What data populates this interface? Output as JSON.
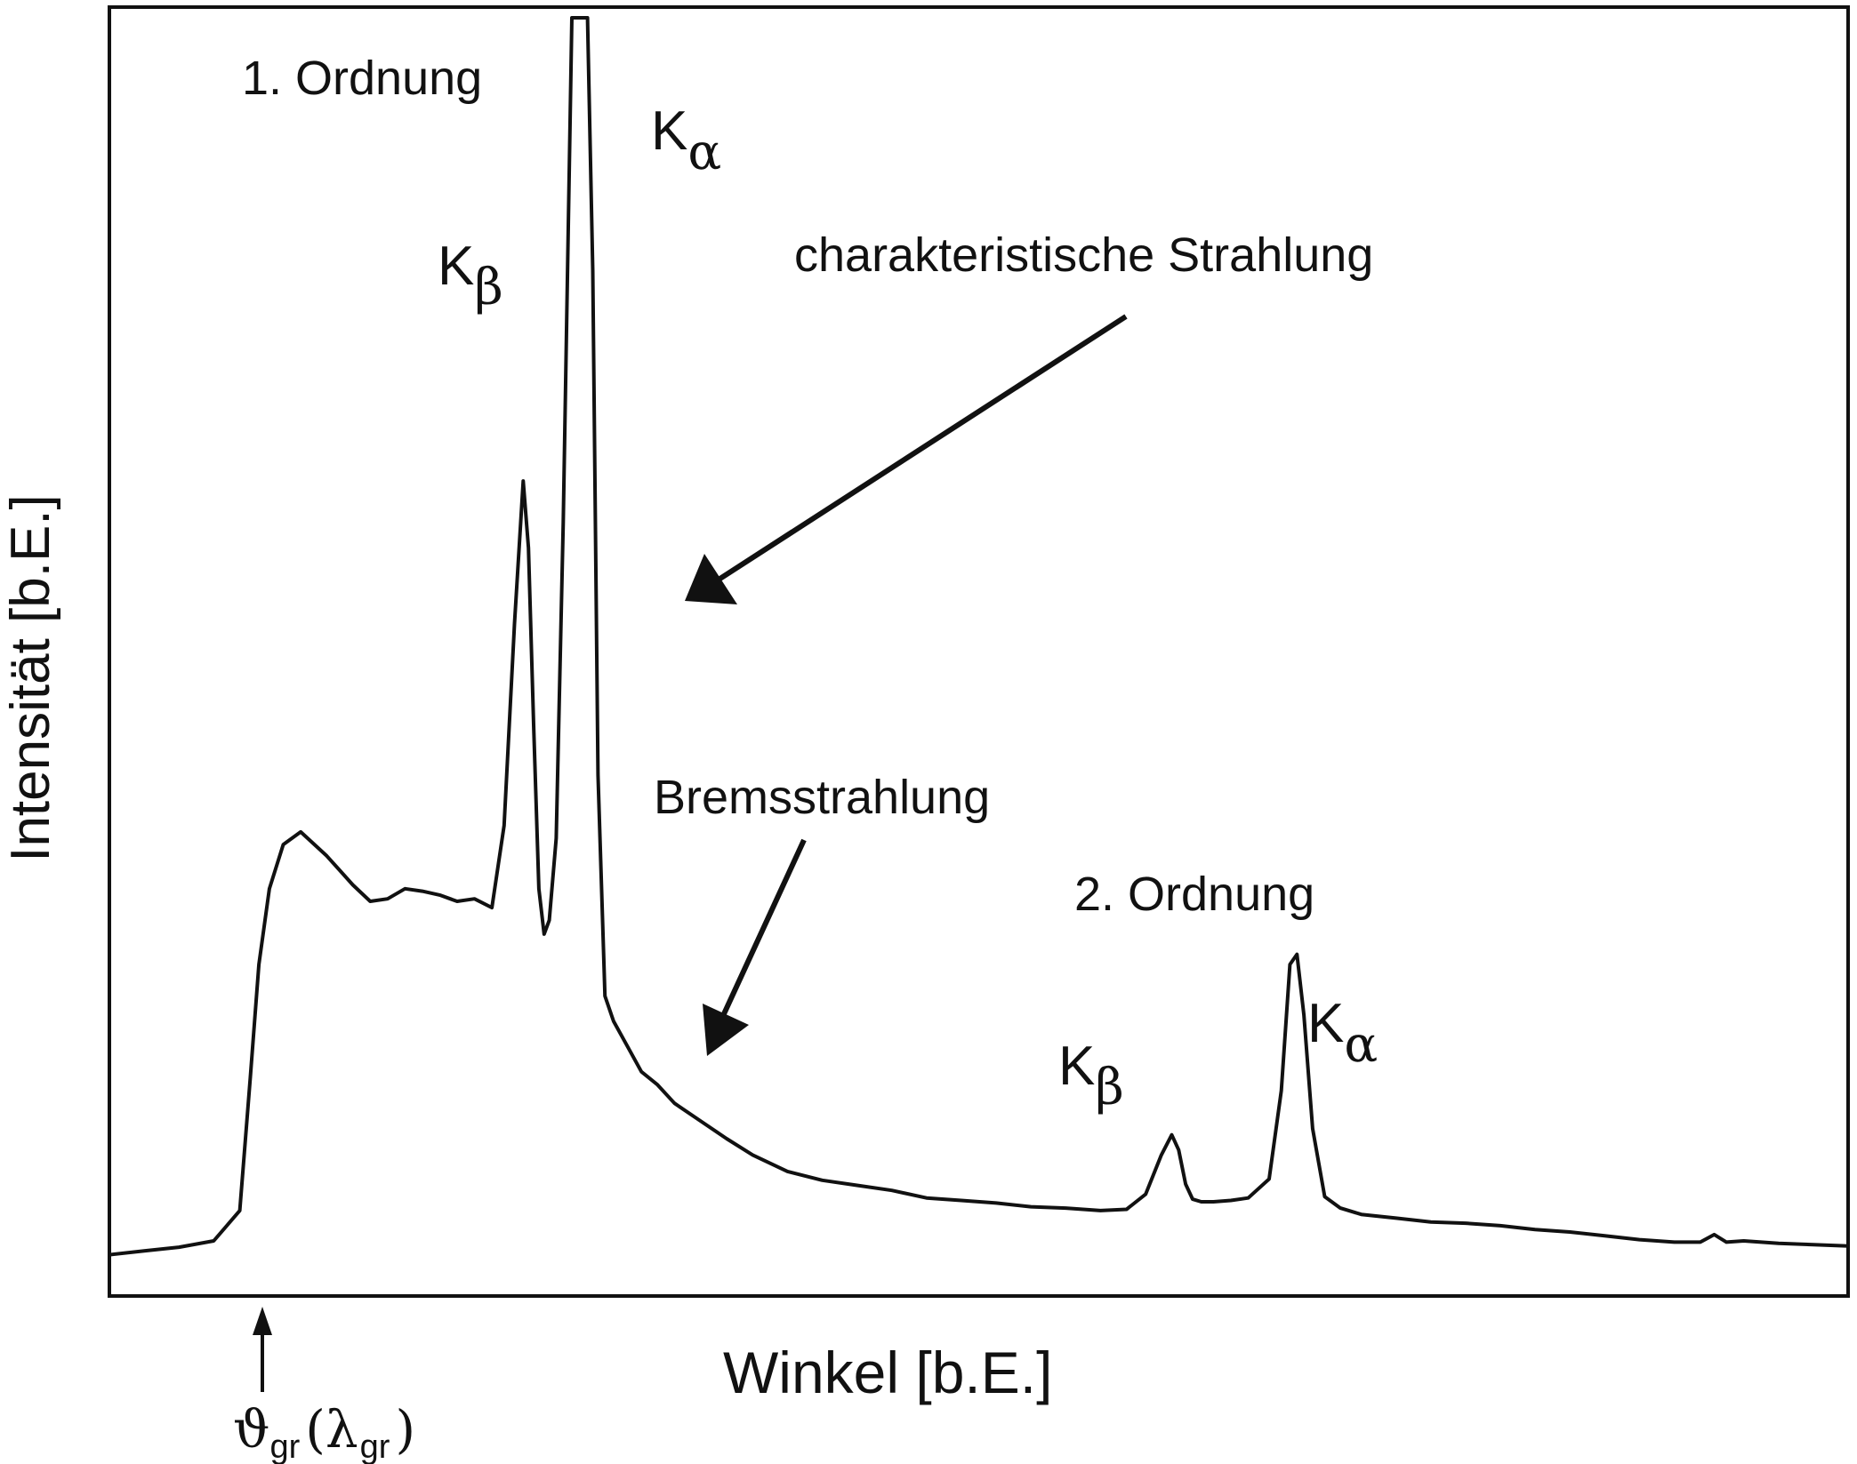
{
  "chart_data": {
    "type": "line",
    "title": "",
    "xlabel": "Winkel [b.E.]",
    "ylabel": "Intensität [b.E.]",
    "xlim": [
      0,
      100
    ],
    "ylim": [
      0,
      100
    ],
    "ticks": "none",
    "grid": false,
    "legend": "none",
    "series": [
      {
        "x": [
          0,
          2,
          4,
          6,
          7.5,
          8.1,
          8.6,
          9.2,
          10,
          11,
          12.5,
          14,
          15,
          16,
          17,
          18,
          19,
          20,
          21,
          22,
          22.7,
          23.3,
          23.8,
          24.1,
          24.4,
          24.7,
          25,
          25.3,
          25.7,
          26.1,
          26.6,
          27.1,
          27.5,
          27.8,
          28.1,
          28.5,
          29,
          29.8,
          30.6,
          31.5,
          32.5,
          34,
          35.5,
          37,
          39,
          41,
          43,
          45,
          47,
          49,
          51,
          53,
          55,
          57,
          58.5,
          59.6,
          60.5,
          61.1,
          61.5,
          61.9,
          62.3,
          62.8,
          63.5,
          64.5,
          65.5,
          66.7,
          67.4,
          67.9,
          68.3,
          68.7,
          69.2,
          69.9,
          70.8,
          72,
          74,
          76,
          78,
          80,
          82,
          84,
          86,
          88,
          90,
          91.5,
          92.3,
          93,
          94,
          96,
          98,
          100
        ],
        "y": [
          2,
          2.3,
          2.6,
          3.1,
          5.5,
          16,
          25,
          31,
          34.5,
          35.5,
          33.6,
          31.3,
          30,
          30.2,
          31,
          30.8,
          30.5,
          30,
          30.2,
          29.5,
          36,
          52,
          63.3,
          58,
          44,
          31,
          27.4,
          28.5,
          35,
          60,
          100,
          100,
          100,
          80,
          40,
          22.5,
          20.5,
          18.5,
          16.5,
          15.5,
          14,
          12.6,
          11.2,
          9.9,
          8.6,
          7.9,
          7.5,
          7.1,
          6.5,
          6.3,
          6.1,
          5.8,
          5.7,
          5.5,
          5.6,
          6.8,
          9.9,
          11.5,
          10.3,
          7.6,
          6.4,
          6.2,
          6.2,
          6.3,
          6.5,
          8,
          15,
          25,
          25.8,
          21,
          12,
          6.6,
          5.7,
          5.2,
          4.9,
          4.6,
          4.5,
          4.3,
          4,
          3.8,
          3.5,
          3.2,
          3,
          3,
          3.6,
          3,
          3.1,
          2.9,
          2.8,
          2.7
        ]
      }
    ],
    "annotations": {
      "first_order": "1. Ordnung",
      "second_order": "2. Ordnung",
      "k_letter": "K",
      "alpha": "α",
      "beta": "β",
      "characteristic": "charakteristische Strahlung",
      "bremsstrahlung": "Bremsstrahlung",
      "theta": "ϑ",
      "lambda": "λ",
      "sub_gr": "gr",
      "paren_open": "(",
      "paren_close": ")"
    },
    "colors": {
      "line": "#111111",
      "background": "#ffffff"
    }
  }
}
